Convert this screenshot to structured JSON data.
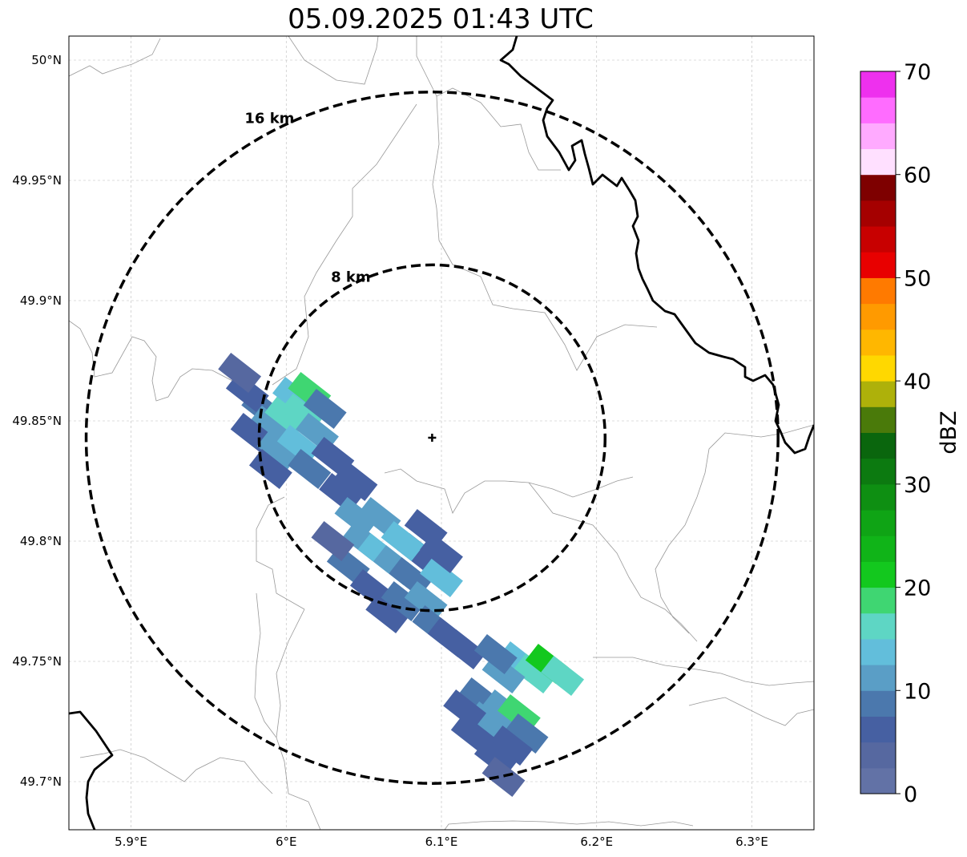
{
  "title": "05.09.2025 01:43 UTC",
  "map": {
    "lon_range": [
      5.86,
      6.34
    ],
    "lat_range": [
      49.68,
      50.01
    ],
    "lon_ticks": [
      {
        "value": 5.9,
        "label": "5.9°E"
      },
      {
        "value": 6.0,
        "label": "6°E"
      },
      {
        "value": 6.1,
        "label": "6.1°E"
      },
      {
        "value": 6.2,
        "label": "6.2°E"
      },
      {
        "value": 6.3,
        "label": "6.3°E"
      }
    ],
    "lat_ticks": [
      {
        "value": 50.0,
        "label": "50°N"
      },
      {
        "value": 49.95,
        "label": "49.95°N"
      },
      {
        "value": 49.9,
        "label": "49.9°N"
      },
      {
        "value": 49.85,
        "label": "49.85°N"
      },
      {
        "value": 49.8,
        "label": "49.8°N"
      },
      {
        "value": 49.75,
        "label": "49.75°N"
      },
      {
        "value": 49.7,
        "label": "49.7°N"
      }
    ],
    "radar_site": {
      "lon": 6.094,
      "lat": 49.843
    },
    "rings": [
      {
        "radius_km": 8,
        "label": "8 km"
      },
      {
        "radius_km": 16,
        "label": "16 km"
      }
    ]
  },
  "colorbar": {
    "label": "dBZ",
    "min": 0,
    "max": 70,
    "step": 2.5,
    "ticks": [
      0,
      10,
      20,
      30,
      40,
      50,
      60,
      70
    ],
    "colors": [
      "#6272a6",
      "#5668a0",
      "#4660a2",
      "#4b78ad",
      "#5a9ec6",
      "#62bedb",
      "#5ed6c4",
      "#3fd672",
      "#13c81e",
      "#10b418",
      "#0fa415",
      "#0e8f12",
      "#0c7a10",
      "#0a660d",
      "#4a7a0a",
      "#aeb10a",
      "#ffd800",
      "#ffb700",
      "#ff9a00",
      "#ff7a00",
      "#e80000",
      "#c80000",
      "#a50000",
      "#7e0000",
      "#ffe0ff",
      "#ffaaff",
      "#ff6cff",
      "#ee30ee"
    ]
  },
  "reflectivity_cells": [
    {
      "lon": 5.985,
      "lat": 49.855,
      "dbz": 8
    },
    {
      "lon": 5.99,
      "lat": 49.848,
      "dbz": 12
    },
    {
      "lon": 6.0,
      "lat": 49.852,
      "dbz": 16
    },
    {
      "lon": 6.005,
      "lat": 49.86,
      "dbz": 14
    },
    {
      "lon": 6.01,
      "lat": 49.853,
      "dbz": 17
    },
    {
      "lon": 6.015,
      "lat": 49.862,
      "dbz": 19
    },
    {
      "lon": 5.975,
      "lat": 49.862,
      "dbz": 6
    },
    {
      "lon": 5.978,
      "lat": 49.845,
      "dbz": 7
    },
    {
      "lon": 5.995,
      "lat": 49.838,
      "dbz": 11
    },
    {
      "lon": 6.008,
      "lat": 49.84,
      "dbz": 13
    },
    {
      "lon": 6.02,
      "lat": 49.845,
      "dbz": 12
    },
    {
      "lon": 6.025,
      "lat": 49.855,
      "dbz": 9
    },
    {
      "lon": 6.03,
      "lat": 49.835,
      "dbz": 7
    },
    {
      "lon": 5.97,
      "lat": 49.87,
      "dbz": 4
    },
    {
      "lon": 6.015,
      "lat": 49.83,
      "dbz": 8
    },
    {
      "lon": 5.99,
      "lat": 49.83,
      "dbz": 5
    },
    {
      "lon": 6.035,
      "lat": 49.82,
      "dbz": 6
    },
    {
      "lon": 6.045,
      "lat": 49.81,
      "dbz": 10
    },
    {
      "lon": 6.05,
      "lat": 49.8,
      "dbz": 12
    },
    {
      "lon": 6.06,
      "lat": 49.795,
      "dbz": 14
    },
    {
      "lon": 6.07,
      "lat": 49.79,
      "dbz": 11
    },
    {
      "lon": 6.08,
      "lat": 49.785,
      "dbz": 9
    },
    {
      "lon": 6.085,
      "lat": 49.795,
      "dbz": 7
    },
    {
      "lon": 6.04,
      "lat": 49.79,
      "dbz": 8
    },
    {
      "lon": 6.055,
      "lat": 49.78,
      "dbz": 6
    },
    {
      "lon": 6.065,
      "lat": 49.77,
      "dbz": 5
    },
    {
      "lon": 6.075,
      "lat": 49.775,
      "dbz": 9
    },
    {
      "lon": 6.09,
      "lat": 49.775,
      "dbz": 12
    },
    {
      "lon": 6.1,
      "lat": 49.785,
      "dbz": 14
    },
    {
      "lon": 6.095,
      "lat": 49.765,
      "dbz": 8
    },
    {
      "lon": 6.105,
      "lat": 49.76,
      "dbz": 6
    },
    {
      "lon": 6.115,
      "lat": 49.755,
      "dbz": 5
    },
    {
      "lon": 6.03,
      "lat": 49.8,
      "dbz": 4
    },
    {
      "lon": 6.06,
      "lat": 49.81,
      "dbz": 12
    },
    {
      "lon": 6.075,
      "lat": 49.8,
      "dbz": 13
    },
    {
      "lon": 6.09,
      "lat": 49.805,
      "dbz": 6
    },
    {
      "lon": 6.045,
      "lat": 49.825,
      "dbz": 7
    },
    {
      "lon": 6.1,
      "lat": 49.795,
      "dbz": 5
    },
    {
      "lon": 6.15,
      "lat": 49.75,
      "dbz": 14
    },
    {
      "lon": 6.16,
      "lat": 49.745,
      "dbz": 17
    },
    {
      "lon": 6.168,
      "lat": 49.749,
      "dbz": 21
    },
    {
      "lon": 6.178,
      "lat": 49.744,
      "dbz": 15
    },
    {
      "lon": 6.14,
      "lat": 49.745,
      "dbz": 10
    },
    {
      "lon": 6.135,
      "lat": 49.753,
      "dbz": 9
    },
    {
      "lon": 6.125,
      "lat": 49.735,
      "dbz": 8
    },
    {
      "lon": 6.13,
      "lat": 49.725,
      "dbz": 10
    },
    {
      "lon": 6.14,
      "lat": 49.73,
      "dbz": 11
    },
    {
      "lon": 6.15,
      "lat": 49.728,
      "dbz": 18
    },
    {
      "lon": 6.155,
      "lat": 49.72,
      "dbz": 9
    },
    {
      "lon": 6.145,
      "lat": 49.715,
      "dbz": 7
    },
    {
      "lon": 6.115,
      "lat": 49.73,
      "dbz": 5
    },
    {
      "lon": 6.135,
      "lat": 49.71,
      "dbz": 5
    },
    {
      "lon": 6.14,
      "lat": 49.702,
      "dbz": 4
    },
    {
      "lon": 6.12,
      "lat": 49.72,
      "dbz": 6
    }
  ]
}
